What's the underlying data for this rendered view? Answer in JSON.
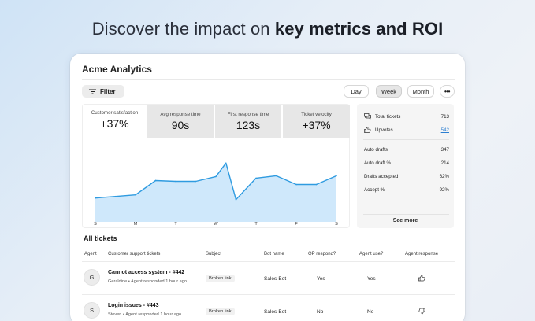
{
  "headline": {
    "prefix": "Discover the impact on ",
    "bold": "key metrics and ROI"
  },
  "app": {
    "title": "Acme Analytics"
  },
  "toolbar": {
    "filter_label": "Filter",
    "ranges": [
      "Day",
      "Week",
      "Month"
    ],
    "selected_range": "Week",
    "more_label": "•••"
  },
  "metrics": [
    {
      "label": "Customer satisfaction",
      "value": "+37%"
    },
    {
      "label": "Avg response time",
      "value": "90s"
    },
    {
      "label": "First response time",
      "value": "123s"
    },
    {
      "label": "Ticket velocity",
      "value": "+37%"
    }
  ],
  "chart_data": {
    "type": "area",
    "title": "",
    "categories": [
      "S",
      "M",
      "T",
      "W",
      "T",
      "F",
      "S"
    ],
    "x": [
      0,
      0.5,
      1,
      1.5,
      2,
      2.5,
      3,
      3.25,
      3.5,
      4,
      4.5,
      5,
      5.5,
      6
    ],
    "values": [
      3,
      3.2,
      3.4,
      5.2,
      5.1,
      5.1,
      5.7,
      7.4,
      2.8,
      5.5,
      5.8,
      4.7,
      4.7,
      5.8
    ],
    "ylim": [
      0,
      10
    ],
    "xlabel": "",
    "ylabel": "",
    "grid": false,
    "color": "#2f9be0",
    "fill": "#cfe8fb"
  },
  "side": {
    "rows_top": [
      {
        "icon": "chat-icon",
        "label": "Total tickets",
        "value": "713",
        "link": false
      },
      {
        "icon": "thumbs-up-icon",
        "label": "Upvotes",
        "value": "542",
        "link": true
      }
    ],
    "rows_bottom": [
      {
        "label": "Auto drafts",
        "value": "347"
      },
      {
        "label": "Auto draft %",
        "value": "214"
      },
      {
        "label": "Drafts accepted",
        "value": "62%"
      },
      {
        "label": "Accept %",
        "value": "92%"
      }
    ],
    "see_more": "See more"
  },
  "tickets": {
    "title": "All tickets",
    "columns": [
      "Agent",
      "Customer support tickets",
      "Subject",
      "Bot name",
      "QP respond?",
      "Agent use?",
      "Agent response"
    ],
    "rows": [
      {
        "avatar": "G",
        "title": "Cannot access system - #442",
        "agent": "Geraldine",
        "meta": "Agent responded 1 hour ago",
        "subject": "Broken link",
        "bot": "Sales-Bot",
        "qp": "Yes",
        "use": "Yes",
        "response": "thumbs-up-icon"
      },
      {
        "avatar": "S",
        "title": "Login issues - #443",
        "agent": "Steven",
        "meta": "Agent responded 1 hour ago",
        "subject": "Broken link",
        "bot": "Sales-Bot",
        "qp": "No",
        "use": "No",
        "response": "thumbs-down-icon"
      }
    ]
  },
  "colors": {
    "accent": "#2f9be0",
    "link": "#2d7fd1"
  }
}
